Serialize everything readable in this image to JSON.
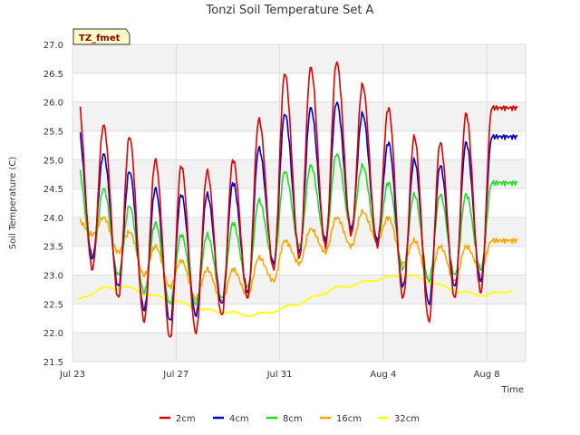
{
  "chart_data": {
    "type": "line",
    "title": "Tonzi Soil Temperature Set A",
    "xlabel": "Time",
    "ylabel": "Soil Temperature (C)",
    "site_badge": "TZ_fmet",
    "ylim": [
      21.5,
      27.0
    ],
    "xlim": [
      0,
      17.5
    ],
    "y_ticks": [
      "21.5",
      "22.0",
      "22.5",
      "23.0",
      "23.5",
      "24.0",
      "24.5",
      "25.0",
      "25.5",
      "26.0",
      "26.5",
      "27.0"
    ],
    "x_ticks": [
      {
        "label": "Jul 23",
        "day": 0
      },
      {
        "label": "Jul 27",
        "day": 4
      },
      {
        "label": "Jul 31",
        "day": 8
      },
      {
        "label": "Aug 4",
        "day": 12
      },
      {
        "label": "Aug 8",
        "day": 16
      }
    ],
    "grid": true,
    "background_bands": true,
    "legend_position": "bottom",
    "series": [
      {
        "name": "2cm",
        "color": "#e00000",
        "peaks": [
          26.1,
          25.6,
          25.4,
          25.0,
          24.9,
          24.8,
          25.0,
          25.7,
          26.5,
          26.6,
          26.7,
          26.3,
          25.9,
          25.4,
          25.3,
          25.8,
          25.9
        ],
        "troughs": [
          23.1,
          22.6,
          22.2,
          21.9,
          22.0,
          22.3,
          22.6,
          23.1,
          23.3,
          23.5,
          23.7,
          23.5,
          22.6,
          22.2,
          22.6,
          22.7
        ]
      },
      {
        "name": "4cm",
        "color": "#0000cc",
        "peaks": [
          25.6,
          25.1,
          24.8,
          24.5,
          24.4,
          24.4,
          24.6,
          25.2,
          25.8,
          25.9,
          26.0,
          25.8,
          25.3,
          25.0,
          24.9,
          25.3,
          25.4
        ],
        "troughs": [
          23.3,
          22.8,
          22.4,
          22.2,
          22.3,
          22.5,
          22.7,
          23.2,
          23.4,
          23.6,
          23.8,
          23.6,
          22.8,
          22.5,
          22.8,
          22.9
        ]
      },
      {
        "name": "8cm",
        "color": "#22dd22",
        "peaks": [
          24.9,
          24.5,
          24.2,
          23.9,
          23.7,
          23.7,
          23.9,
          24.3,
          24.8,
          24.9,
          25.1,
          24.9,
          24.6,
          24.4,
          24.4,
          24.4,
          24.6
        ],
        "troughs": [
          23.3,
          23.0,
          22.7,
          22.5,
          22.5,
          22.6,
          22.8,
          23.2,
          23.5,
          23.6,
          23.8,
          23.6,
          23.1,
          22.9,
          23.0,
          23.1
        ]
      },
      {
        "name": "16cm",
        "color": "#ffa500",
        "peaks": [
          23.95,
          24.0,
          23.75,
          23.5,
          23.25,
          23.1,
          23.1,
          23.3,
          23.6,
          23.8,
          24.0,
          24.1,
          24.0,
          23.6,
          23.5,
          23.5,
          23.6
        ],
        "troughs": [
          23.7,
          23.4,
          23.0,
          22.8,
          22.6,
          22.55,
          22.65,
          22.9,
          23.2,
          23.4,
          23.5,
          23.6,
          23.2,
          22.9,
          22.9,
          23.1
        ]
      },
      {
        "name": "32cm",
        "color": "#ffff00",
        "levels": [
          {
            "day": 0.2,
            "value": 22.55
          },
          {
            "day": 1.0,
            "value": 22.75
          },
          {
            "day": 2.0,
            "value": 22.8
          },
          {
            "day": 3.0,
            "value": 22.65
          },
          {
            "day": 4.0,
            "value": 22.55
          },
          {
            "day": 5.0,
            "value": 22.4
          },
          {
            "day": 6.0,
            "value": 22.35
          },
          {
            "day": 7.0,
            "value": 22.3
          },
          {
            "day": 8.0,
            "value": 22.4
          },
          {
            "day": 9.0,
            "value": 22.55
          },
          {
            "day": 10.0,
            "value": 22.75
          },
          {
            "day": 11.0,
            "value": 22.85
          },
          {
            "day": 12.0,
            "value": 22.95
          },
          {
            "day": 13.0,
            "value": 23.0
          },
          {
            "day": 14.0,
            "value": 22.85
          },
          {
            "day": 15.0,
            "value": 22.7
          },
          {
            "day": 16.0,
            "value": 22.65
          },
          {
            "day": 17.0,
            "value": 22.75
          }
        ]
      }
    ]
  }
}
